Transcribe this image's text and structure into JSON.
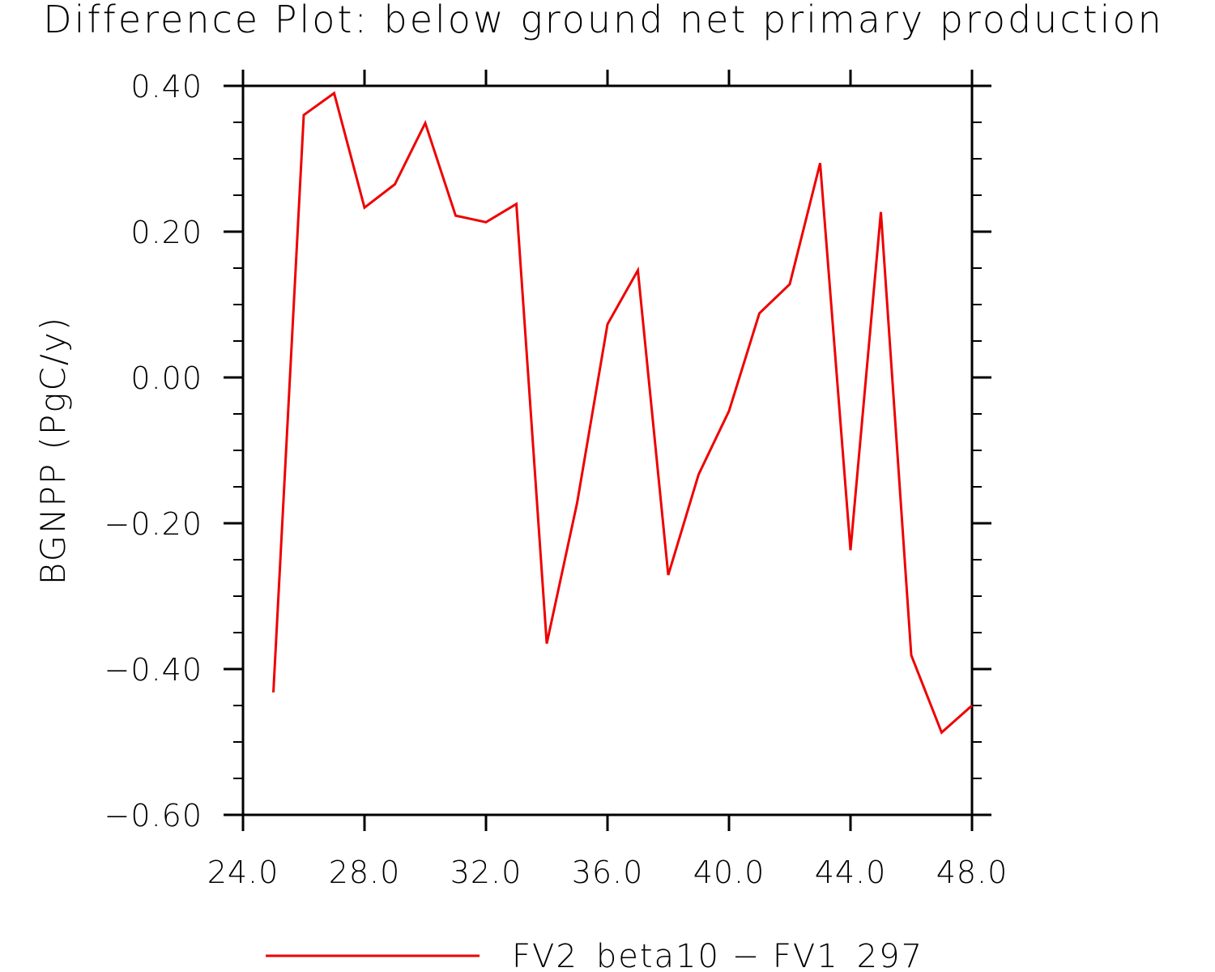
{
  "chart_data": {
    "type": "line",
    "title": "Difference Plot: below ground net primary production",
    "xlabel": "",
    "ylabel": "BGNPP   (PgC/y)",
    "xlim": [
      24,
      48
    ],
    "ylim": [
      -0.6,
      0.4
    ],
    "xticks": [
      "24.0",
      "28.0",
      "32.0",
      "36.0",
      "40.0",
      "44.0",
      "48.0"
    ],
    "yticks": [
      "0.40",
      "0.20",
      "0.00",
      "−0.20",
      "−0.40",
      "−0.60"
    ],
    "grid": false,
    "legend_position": "bottom-center",
    "series": [
      {
        "name": "FV2_beta10 − FV1_297",
        "color": "#ee0000",
        "x": [
          25,
          26,
          27,
          28,
          29,
          30,
          31,
          32,
          33,
          34,
          35,
          36,
          37,
          38,
          39,
          40,
          41,
          42,
          43,
          44,
          45,
          46,
          47,
          48
        ],
        "y": [
          -0.432,
          0.36,
          0.39,
          0.233,
          0.265,
          0.349,
          0.222,
          0.213,
          0.238,
          -0.365,
          -0.172,
          0.073,
          0.147,
          -0.271,
          -0.133,
          -0.046,
          0.088,
          0.128,
          0.294,
          -0.237,
          0.227,
          -0.381,
          -0.487,
          -0.45
        ]
      }
    ]
  }
}
